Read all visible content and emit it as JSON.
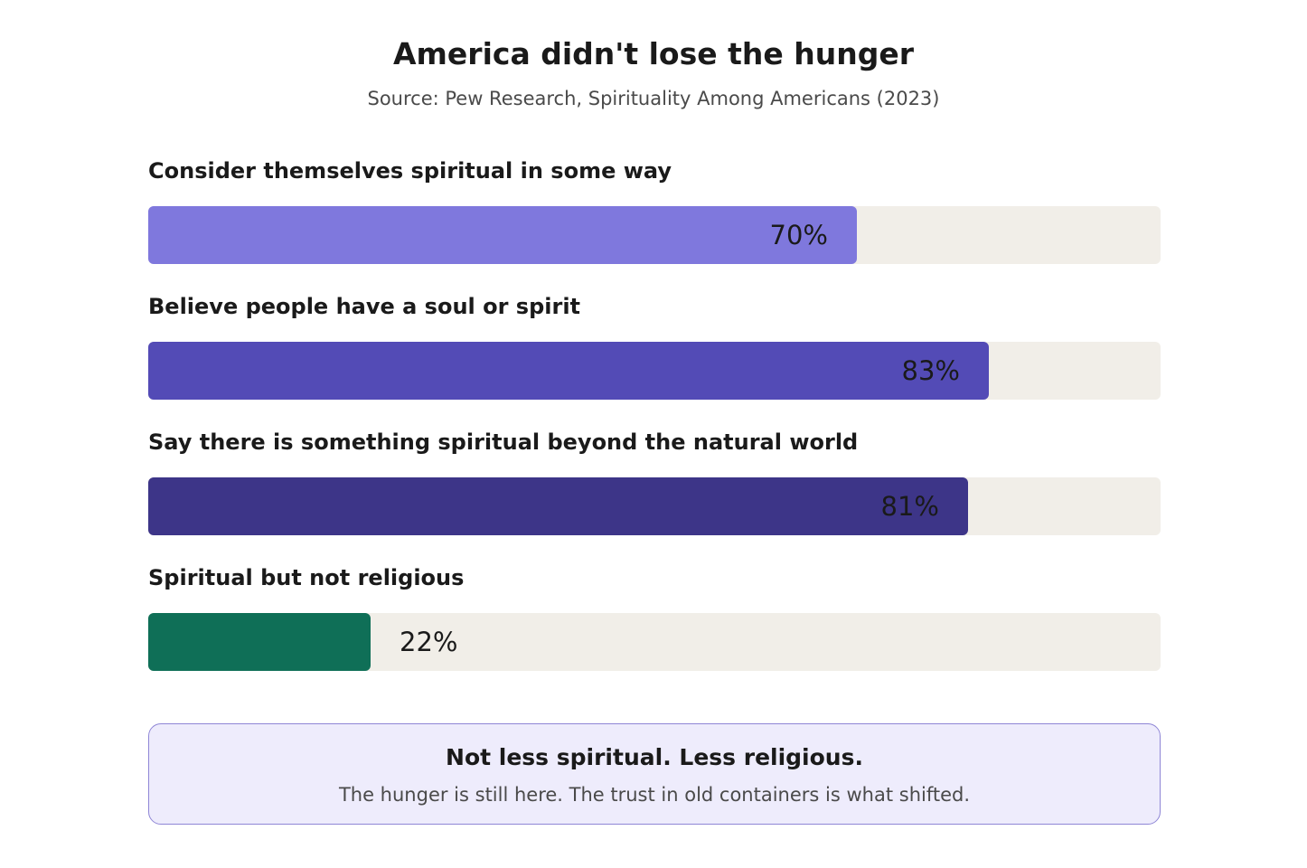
{
  "chart_data": {
    "type": "bar",
    "orientation": "horizontal",
    "title": "America didn't lose the hunger",
    "subtitle": "Source: Pew Research, Spirituality Among Americans (2023)",
    "xlim": [
      0,
      100
    ],
    "grid": false,
    "categories": [
      "Consider themselves spiritual in some way",
      "Believe people have a soul or spirit",
      "Say there is something spiritual beyond the natural world",
      "Spiritual but not religious"
    ],
    "values": [
      70,
      83,
      81,
      22
    ],
    "value_labels": [
      "70%",
      "83%",
      "81%",
      "22%"
    ],
    "colors": [
      "#7f78dd",
      "#534bb6",
      "#3d3588",
      "#0f6f57"
    ],
    "track_color": "#f1eee8"
  },
  "callout": {
    "title": "Not less spiritual. Less religious.",
    "text": "The hunger is still here. The trust in old containers is what shifted."
  }
}
